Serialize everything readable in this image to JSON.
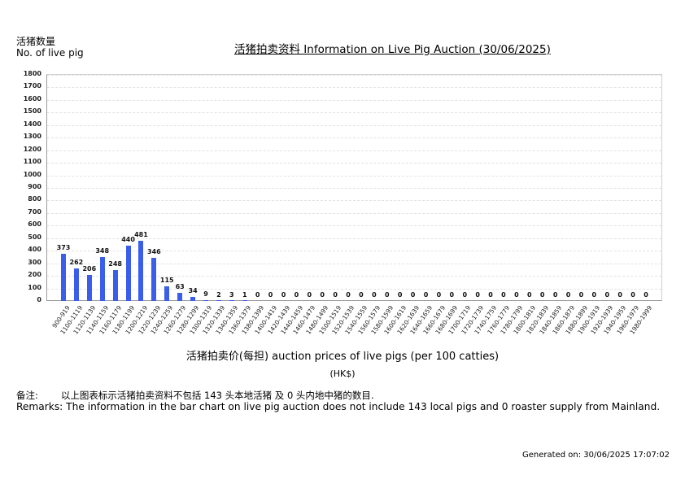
{
  "header": {
    "ylabel_cn": "活猪数量",
    "ylabel_en": "No. of live pig",
    "title": "活猪拍卖资料 Information on Live Pig Auction (30/06/2025)"
  },
  "footer": {
    "xlabel": "活猪拍卖价(每担) auction prices of live pigs (per 100 catties)",
    "xunit": "(HK$)",
    "remark_cn_label": "备注:",
    "remark_cn_text": "以上图表标示活猪拍卖资料不包括 143 头本地活猪 及 0 头内地中猪的数目.",
    "remark_en": "Remarks: The information in the bar chart on live pig auction does not include 143 local pigs and 0 roaster supply from Mainland.",
    "generated": "Generated on: 30/06/2025 17:07:02"
  },
  "colors": {
    "bar": "#3a5ee9",
    "grid": "#e2e2e2",
    "axis": "#9a9a9a"
  },
  "chart_data": {
    "type": "bar",
    "title": "活猪拍卖资料 Information on Live Pig Auction (30/06/2025)",
    "xlabel": "活猪拍卖价(每担) auction prices of live pigs (per 100 catties) (HK$)",
    "ylabel": "活猪数量 No. of live pig",
    "ylim": [
      0,
      1800
    ],
    "yticks": [
      0,
      100,
      200,
      300,
      400,
      500,
      600,
      700,
      800,
      900,
      1000,
      1100,
      1200,
      1300,
      1400,
      1500,
      1600,
      1700,
      1800
    ],
    "grid": true,
    "legend": null,
    "categories": [
      "900-919",
      "1100-1119",
      "1120-1139",
      "1140-1159",
      "1160-1179",
      "1180-1199",
      "1200-1219",
      "1220-1239",
      "1240-1259",
      "1260-1279",
      "1280-1299",
      "1300-1319",
      "1320-1339",
      "1340-1359",
      "1360-1379",
      "1380-1399",
      "1400-1419",
      "1420-1439",
      "1440-1459",
      "1460-1479",
      "1480-1499",
      "1500-1519",
      "1520-1539",
      "1540-1559",
      "1560-1579",
      "1580-1599",
      "1600-1619",
      "1620-1639",
      "1640-1659",
      "1660-1679",
      "1680-1699",
      "1700-1719",
      "1720-1739",
      "1740-1759",
      "1760-1779",
      "1780-1799",
      "1800-1819",
      "1820-1839",
      "1840-1859",
      "1860-1879",
      "1880-1899",
      "1900-1919",
      "1920-1939",
      "1940-1959",
      "1960-1979",
      "1980-1999"
    ],
    "values": [
      373,
      262,
      206,
      348,
      248,
      440,
      481,
      346,
      115,
      63,
      34,
      9,
      2,
      3,
      1,
      0,
      0,
      0,
      0,
      0,
      0,
      0,
      0,
      0,
      0,
      0,
      0,
      0,
      0,
      0,
      0,
      0,
      0,
      0,
      0,
      0,
      0,
      0,
      0,
      0,
      0,
      0,
      0,
      0,
      0,
      0
    ]
  }
}
